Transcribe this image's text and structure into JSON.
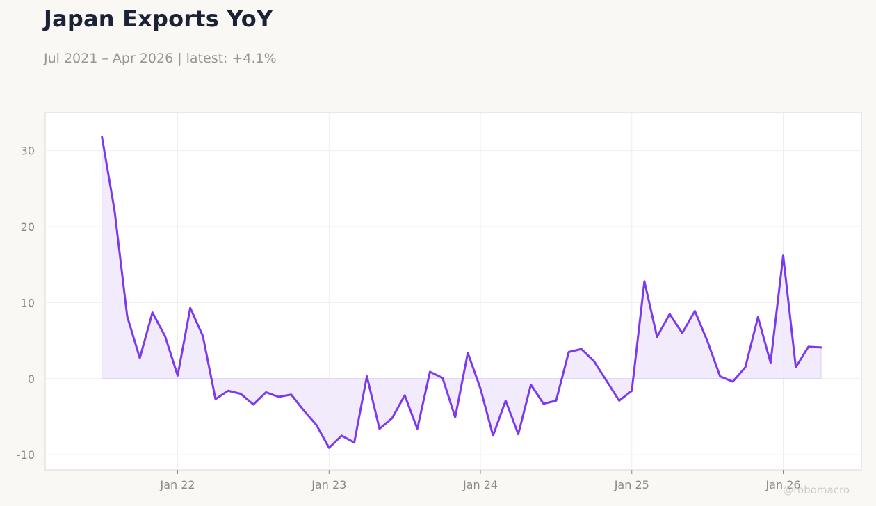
{
  "title": "Japan Exports YoY",
  "subtitle": "Jul 2021 – Apr 2026 | latest: +4.1%",
  "watermark": "@robomacro",
  "colors": {
    "line": "#7b3aed",
    "fill": "#efe8fb",
    "grid": "#f0eeea",
    "axis": "#dcd9d3",
    "background": "#f9f8f5",
    "plot_background": "#ffffff"
  },
  "chart_data": {
    "type": "area",
    "title": "Japan Exports YoY",
    "subtitle": "Jul 2021 – Apr 2026 | latest: +4.1%",
    "xlabel": "",
    "ylabel": "",
    "ylim": [
      -12,
      35
    ],
    "xlim": [
      "2021-02",
      "2026-07"
    ],
    "grid": true,
    "legend": "none",
    "yticks": [
      -10,
      0,
      10,
      20,
      30
    ],
    "xticks": [
      {
        "date": "2022-01",
        "label": "Jan 22"
      },
      {
        "date": "2023-01",
        "label": "Jan 23"
      },
      {
        "date": "2024-01",
        "label": "Jan 24"
      },
      {
        "date": "2025-01",
        "label": "Jan 25"
      },
      {
        "date": "2026-01",
        "label": "Jan 26"
      }
    ],
    "x": [
      "2021-07",
      "2021-08",
      "2021-09",
      "2021-10",
      "2021-11",
      "2021-12",
      "2022-01",
      "2022-02",
      "2022-03",
      "2022-04",
      "2022-05",
      "2022-06",
      "2022-07",
      "2022-08",
      "2022-09",
      "2022-10",
      "2022-11",
      "2022-12",
      "2023-01",
      "2023-02",
      "2023-03",
      "2023-04",
      "2023-05",
      "2023-06",
      "2023-07",
      "2023-08",
      "2023-09",
      "2023-10",
      "2023-11",
      "2023-12",
      "2024-01",
      "2024-02",
      "2024-03",
      "2024-04",
      "2024-05",
      "2024-06",
      "2024-07",
      "2024-08",
      "2024-09",
      "2024-10",
      "2024-11",
      "2024-12",
      "2025-01",
      "2025-02",
      "2025-03",
      "2025-04",
      "2025-05",
      "2025-06",
      "2025-07",
      "2025-08",
      "2025-09",
      "2025-10",
      "2025-11",
      "2025-12",
      "2026-01",
      "2026-02",
      "2026-03",
      "2026-04"
    ],
    "series": [
      {
        "values": [
          31.8,
          22.1,
          8.2,
          2.7,
          8.7,
          5.6,
          0.4,
          9.3,
          5.6,
          -2.7,
          -1.6,
          -2.0,
          -3.4,
          -1.8,
          -2.4,
          -2.1,
          -4.2,
          -6.1,
          -9.1,
          -7.5,
          -8.4,
          0.3,
          -6.6,
          -5.2,
          -2.2,
          -6.6,
          0.9,
          0.1,
          -5.1,
          3.4,
          -1.3,
          -7.5,
          -2.9,
          -7.3,
          -0.8,
          -3.3,
          -2.9,
          3.5,
          3.9,
          2.3,
          -0.3,
          -2.9,
          -1.6,
          12.8,
          5.5,
          8.5,
          6.0,
          8.9,
          4.9,
          0.3,
          -0.4,
          1.5,
          8.1,
          2.1,
          16.2,
          1.5,
          4.2,
          4.1
        ]
      }
    ]
  }
}
